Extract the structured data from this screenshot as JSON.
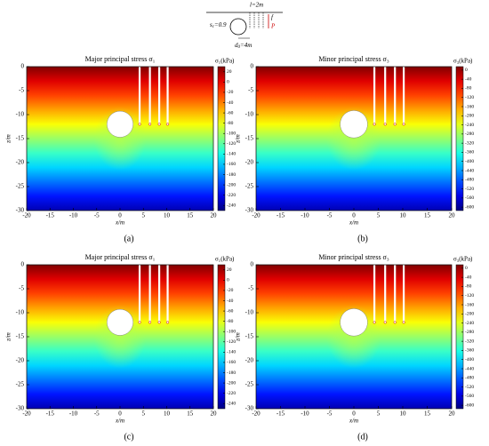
{
  "schematic": {
    "spacing": "l=2m",
    "ratio": "s",
    "ratio_sub": "c",
    "ratio_value": "=0.9",
    "distance": "d",
    "distance_sub": "0",
    "distance_value": "=4m",
    "f": "f",
    "P": "P"
  },
  "chart_data": [
    {
      "type": "contour",
      "title": "Major principal stress σ₁",
      "xlabel": "x/m",
      "ylabel": "z/m",
      "xlim": [
        -20,
        20
      ],
      "ylim": [
        -30,
        0
      ],
      "xticks": [
        -20,
        -15,
        -10,
        -5,
        0,
        5,
        10,
        15,
        20
      ],
      "yticks": [
        0,
        -5,
        -10,
        -15,
        -20,
        -25,
        -30
      ],
      "colorbar_label": "σ₁(kPa)",
      "clim": [
        -250,
        30
      ],
      "cticks": [
        20,
        0,
        -20,
        -40,
        -60,
        -80,
        -100,
        -120,
        -140,
        -160,
        -180,
        -200,
        -220,
        -240
      ],
      "colormap": "jet",
      "panel_label": "(a)"
    },
    {
      "type": "contour",
      "title": "Minor principal stress σ₃",
      "xlabel": "x/m",
      "ylabel": "z/m",
      "xlim": [
        -20,
        20
      ],
      "ylim": [
        -30,
        0
      ],
      "xticks": [
        -20,
        -15,
        -10,
        -5,
        0,
        5,
        10,
        15,
        20
      ],
      "yticks": [
        0,
        -5,
        -10,
        -15,
        -20,
        -25,
        -30
      ],
      "colorbar_label": "σ₃(kPa)",
      "clim": [
        -615,
        15
      ],
      "cticks": [
        0,
        -40,
        -80,
        -120,
        -160,
        -200,
        -240,
        -280,
        -320,
        -360,
        -400,
        -440,
        -480,
        -520,
        -560,
        -600
      ],
      "colormap": "jet",
      "panel_label": "(b)"
    },
    {
      "type": "contour",
      "title": "Major principal stress σ₁",
      "xlabel": "x/m",
      "ylabel": "z/m",
      "xlim": [
        -20,
        20
      ],
      "ylim": [
        -30,
        0
      ],
      "xticks": [
        -20,
        -15,
        -10,
        -5,
        0,
        5,
        10,
        15,
        20
      ],
      "yticks": [
        0,
        -5,
        -10,
        -15,
        -20,
        -25,
        -30
      ],
      "colorbar_label": "σ₁(kPa)",
      "clim": [
        -250,
        30
      ],
      "cticks": [
        20,
        0,
        -20,
        -40,
        -60,
        -80,
        -100,
        -120,
        -140,
        -160,
        -180,
        -200,
        -220,
        -240
      ],
      "colormap": "jet",
      "panel_label": "(c)"
    },
    {
      "type": "contour",
      "title": "Minor principal stress σ₃",
      "xlabel": "x/m",
      "ylabel": "z/m",
      "xlim": [
        -20,
        20
      ],
      "ylim": [
        -30,
        0
      ],
      "xticks": [
        -20,
        -15,
        -10,
        -5,
        0,
        5,
        10,
        15,
        20
      ],
      "yticks": [
        0,
        -5,
        -10,
        -15,
        -20,
        -25,
        -30
      ],
      "colorbar_label": "σ₃(kPa)",
      "clim": [
        -615,
        15
      ],
      "cticks": [
        0,
        -40,
        -80,
        -120,
        -160,
        -200,
        -240,
        -280,
        -320,
        -360,
        -400,
        -440,
        -480,
        -520,
        -560,
        -600
      ],
      "colormap": "jet",
      "panel_label": "(d)"
    }
  ]
}
